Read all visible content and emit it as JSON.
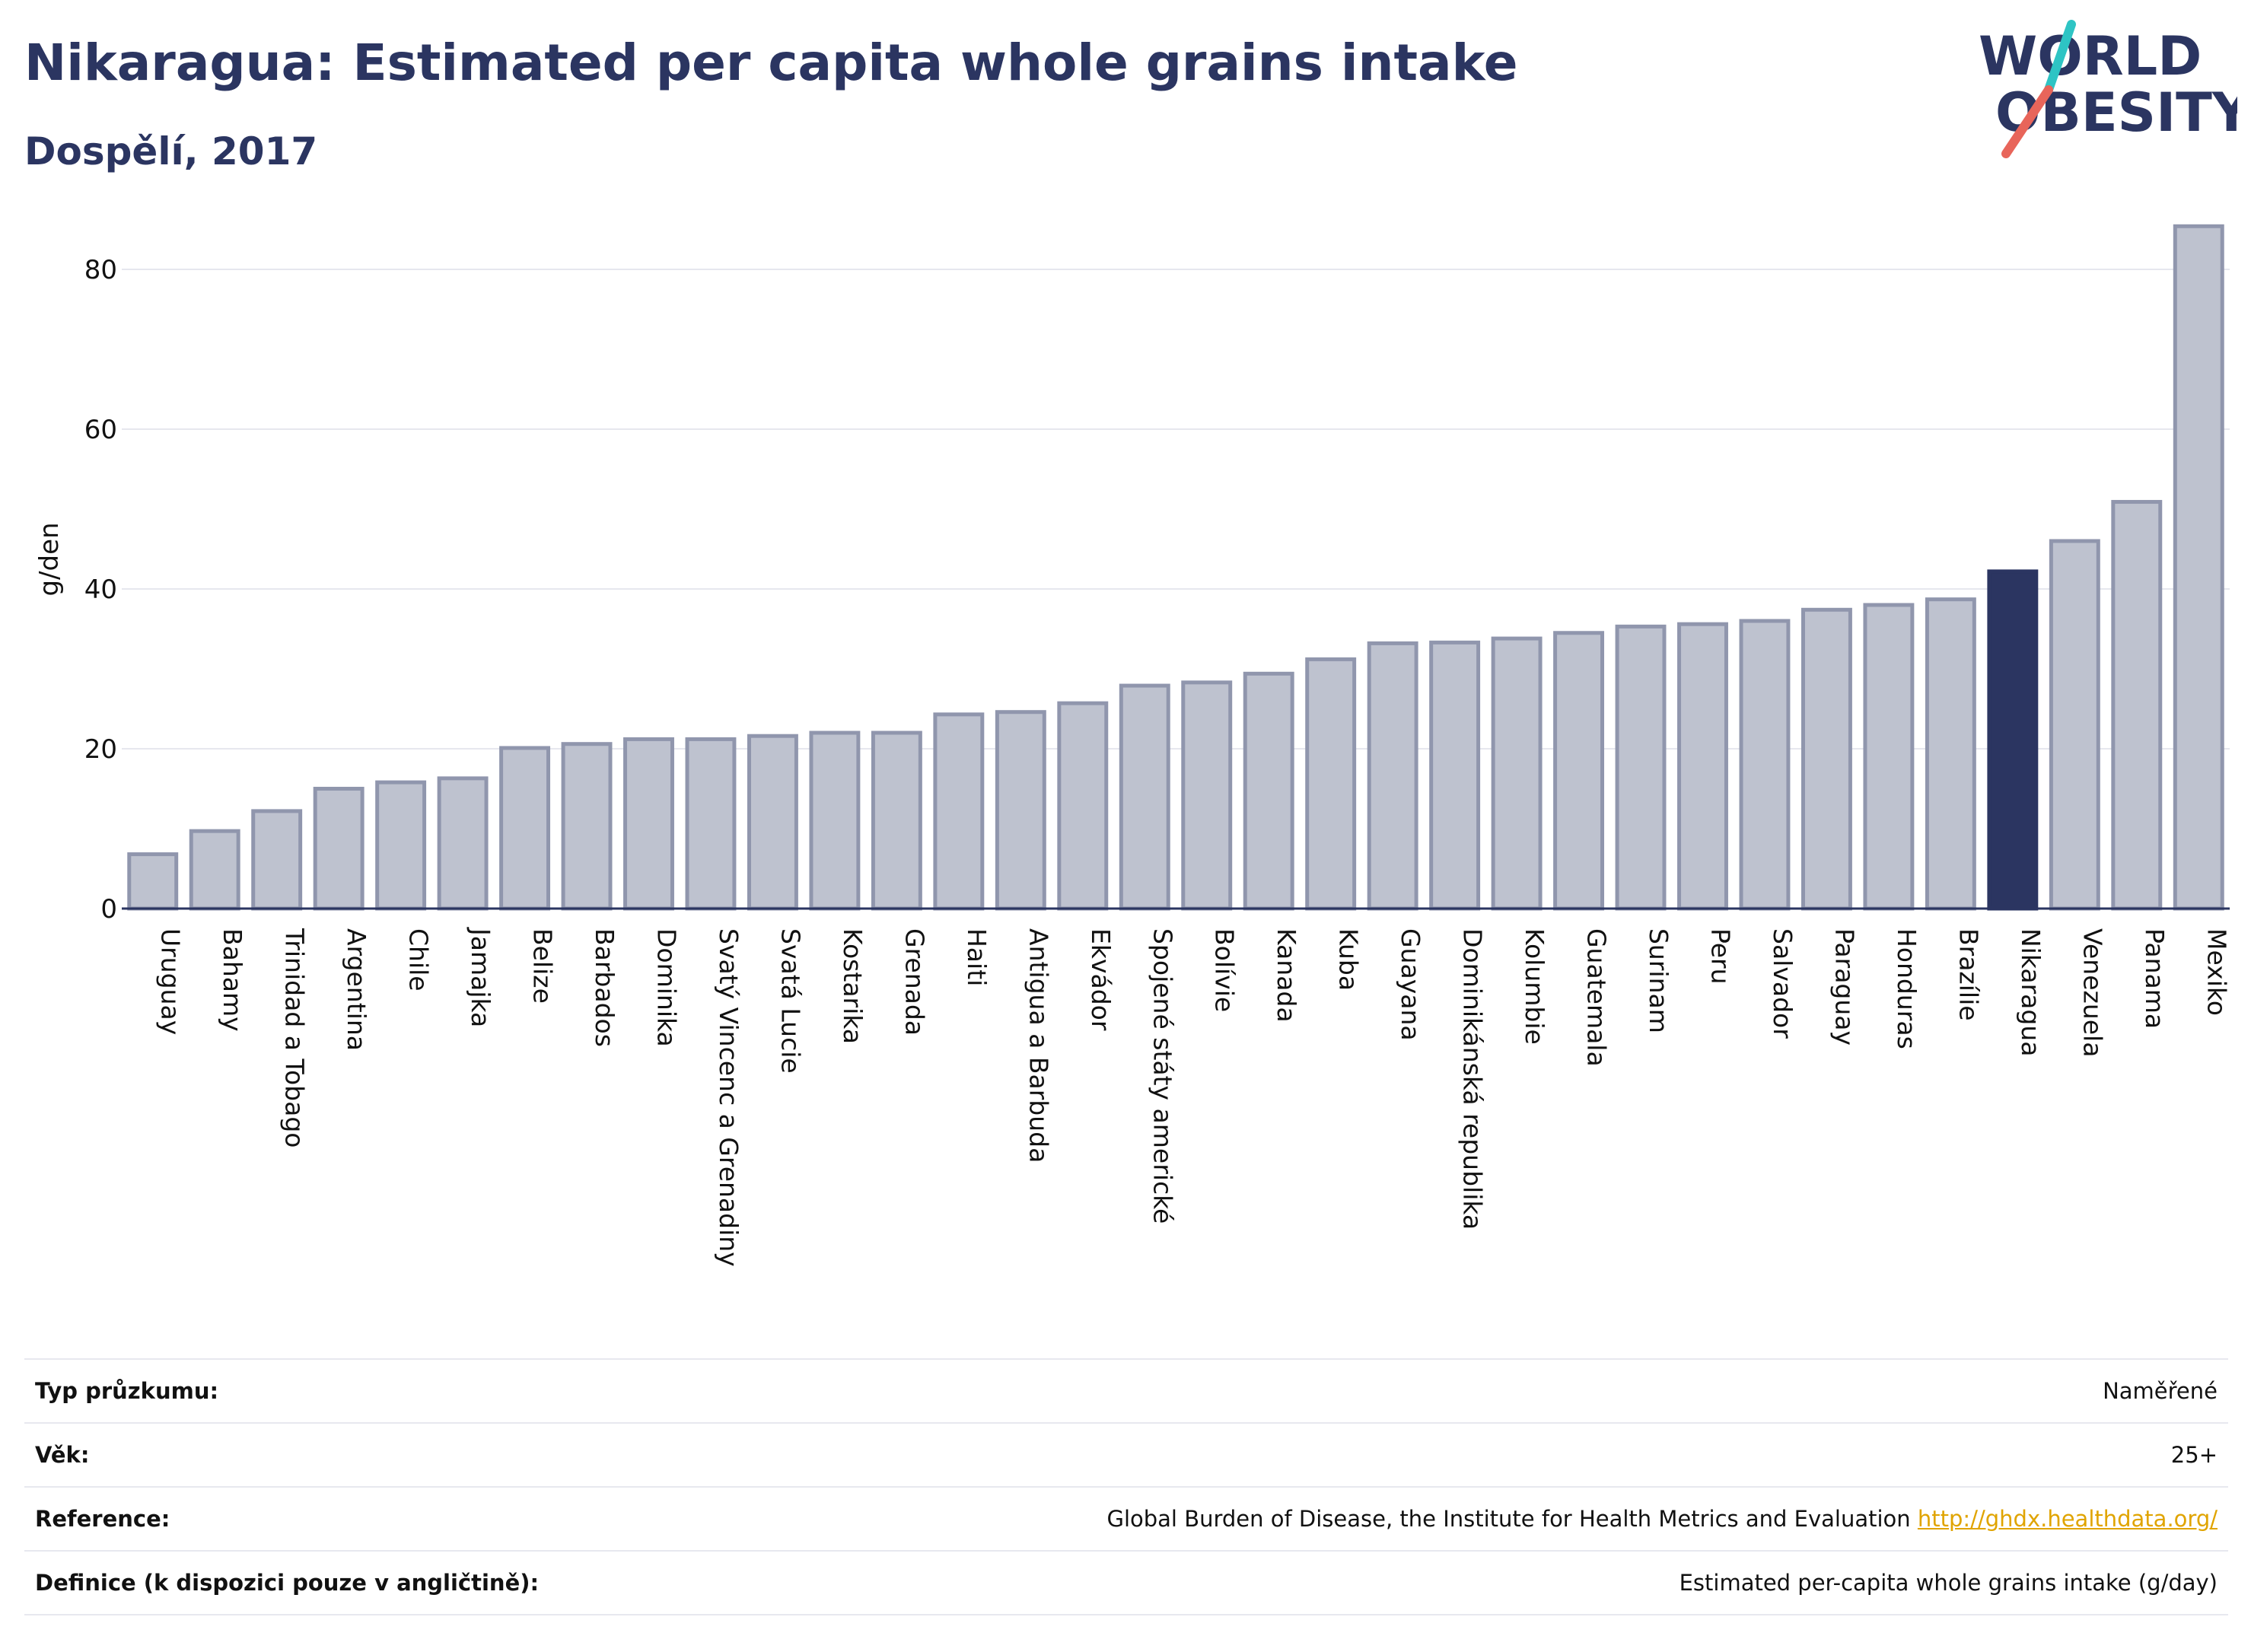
{
  "header": {
    "title": "Nikaragua: Estimated per capita whole grains intake",
    "subtitle": "Dospělí, 2017"
  },
  "logo": {
    "line1": "WORLD",
    "line2": "OBESITY",
    "colors": {
      "text": "#2b3561",
      "slash_top": "#2ec4c4",
      "slash_bottom": "#e8655a"
    }
  },
  "chart_data": {
    "type": "bar",
    "ylabel": "g/den",
    "ylim": [
      0,
      88
    ],
    "yticks": [
      0,
      20,
      40,
      60,
      80
    ],
    "grid": true,
    "highlight": "Nikaragua",
    "colors": {
      "bar": "#bec2cf",
      "bar_border": "#9096ad",
      "highlight": "#2b3561",
      "grid": "#e6e7ee",
      "axis": "#2b3561"
    },
    "categories": [
      "Uruguay",
      "Bahamy",
      "Trinidad a Tobago",
      "Argentina",
      "Chile",
      "Jamajka",
      "Belize",
      "Barbados",
      "Dominika",
      "Svatý Vincenc a Grenadiny",
      "Svatá Lucie",
      "Kostarika",
      "Grenada",
      "Haiti",
      "Antigua a Barbuda",
      "Ekvádor",
      "Spojené státy americké",
      "Bolívie",
      "Kanada",
      "Kuba",
      "Guayana",
      "Dominikánská republika",
      "Kolumbie",
      "Guatemala",
      "Surinam",
      "Peru",
      "Salvador",
      "Paraguay",
      "Honduras",
      "Brazílie",
      "Nikaragua",
      "Venezuela",
      "Panama",
      "Mexiko"
    ],
    "values": [
      6.8,
      9.7,
      12.2,
      15.0,
      15.8,
      16.3,
      20.1,
      20.6,
      21.2,
      21.2,
      21.6,
      22.0,
      22.0,
      24.3,
      24.6,
      25.7,
      27.9,
      28.3,
      29.4,
      31.2,
      33.2,
      33.3,
      33.8,
      34.5,
      35.3,
      35.6,
      36.0,
      37.4,
      38.0,
      38.7,
      42.2,
      46.0,
      50.9,
      85.4
    ]
  },
  "info": {
    "rows": [
      {
        "label": "Typ průzkumu:",
        "value": "Naměřené"
      },
      {
        "label": "Věk:",
        "value": "25+"
      },
      {
        "label": "Reference:",
        "value": "Global Burden of Disease, the Institute for Health Metrics and Evaluation",
        "link": "http://ghdx.healthdata.org/"
      },
      {
        "label": "Definice (k dispozici pouze v angličtině):",
        "value": "Estimated per-capita whole grains intake (g/day)"
      }
    ]
  }
}
